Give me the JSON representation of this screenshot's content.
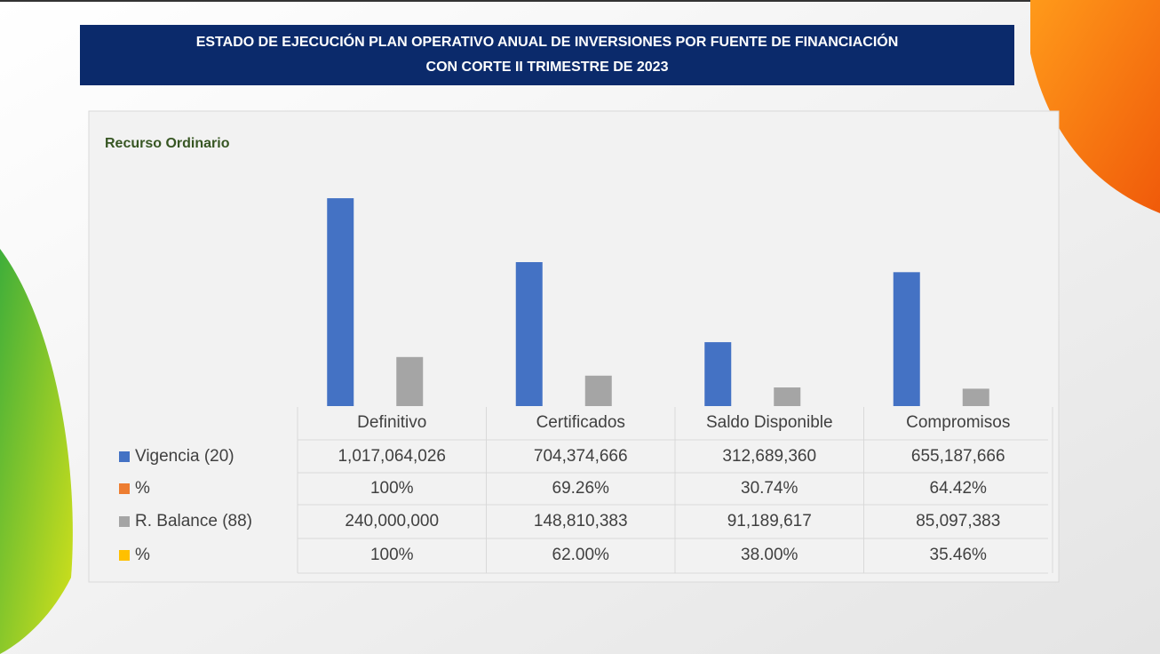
{
  "chart_data": {
    "type": "bar",
    "title": [
      "ESTADO DE EJECUCIÓN PLAN OPERATIVO ANUAL DE INVERSIONES POR FUENTE DE FINANCIACIÓN",
      "CON CORTE II TRIMESTRE DE 2023"
    ],
    "subtitle": "Recurso Ordinario",
    "categories": [
      "Definitivo",
      "Certificados",
      "Saldo Disponible",
      "Compromisos"
    ],
    "series": [
      {
        "name": "Vigencia (20)",
        "color": "#4472c4",
        "values": [
          1017064026,
          704374666,
          312689360,
          655187666
        ],
        "value_labels": [
          "1,017,064,026",
          "704,374,666",
          "312,689,360",
          "655,187,666"
        ]
      },
      {
        "name": "%",
        "color": "#ed7d31",
        "values": [
          100,
          69.26,
          30.74,
          64.42
        ],
        "value_labels": [
          "100%",
          "69.26%",
          "30.74%",
          "64.42%"
        ]
      },
      {
        "name": "R. Balance (88)",
        "color": "#a5a5a5",
        "values": [
          240000000,
          148810383,
          91189617,
          85097383
        ],
        "value_labels": [
          "240,000,000",
          "148,810,383",
          "91,189,617",
          "85,097,383"
        ]
      },
      {
        "name": "%",
        "color": "#ffc000",
        "values": [
          100,
          62.0,
          38.0,
          35.46
        ],
        "value_labels": [
          "100%",
          "62.00%",
          "38.00%",
          "35.46%"
        ]
      }
    ],
    "ylim": [
      0,
      1200000000
    ]
  }
}
